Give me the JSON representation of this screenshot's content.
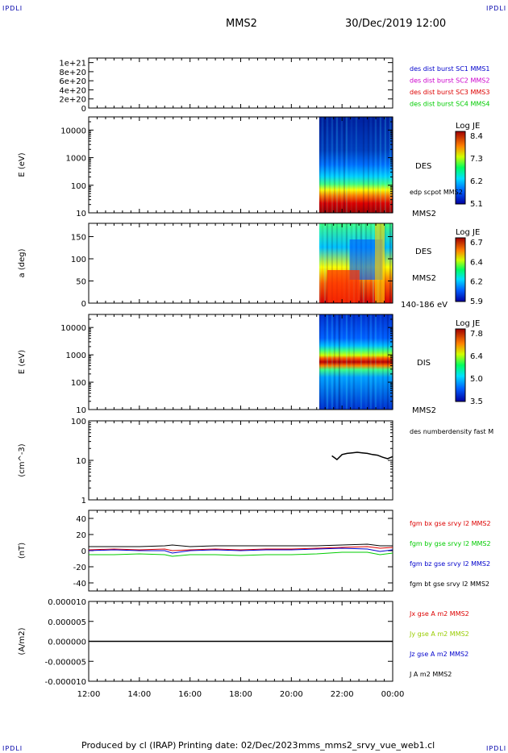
{
  "corner_mark": "IPDLI",
  "header": {
    "mission": "MMS2",
    "datetime": "30/Dec/2019 12:00"
  },
  "footer": {
    "produced_by": "Produced by cl (IRAP)",
    "printing_date": "Printing date: 02/Dec/2023",
    "filename": "mms_mms2_srvy_vue_web1.cl"
  },
  "colors": {
    "mms1": "#0000cc",
    "mms2": "#cc00cc",
    "mms3": "#dd0000",
    "mms4": "#00cc00",
    "bx": "#dd0000",
    "by": "#00cc00",
    "bz": "#0000cc",
    "bt": "#000000",
    "jy": "#99cc00"
  },
  "chart_data": [
    {
      "type": "line",
      "ylabel": "",
      "yticks": [
        "1e+21",
        "8e+20",
        "6e+20",
        "4e+20",
        "2e+20",
        "0"
      ],
      "yvalues": [
        1e+21,
        8e+20,
        6e+20,
        4e+20,
        2e+20,
        0
      ],
      "ylim": [
        0,
        1.1e+21
      ],
      "legend": [
        "des dist burst SC1 MMS1",
        "des dist burst SC2 MMS2",
        "des dist burst SC3 MMS3",
        "des dist burst SC4 MMS4"
      ]
    },
    {
      "type": "heatmap",
      "ylabel": "E (eV)",
      "yticks": [
        "10000",
        "1000",
        "100",
        "10"
      ],
      "yscale": "log",
      "ylim": [
        10,
        30000
      ],
      "colorbar": {
        "title": "Log JE",
        "ticks": [
          "8.4",
          "7.3",
          "6.2",
          "5.1"
        ]
      },
      "side_labels": [
        "DES",
        "edp scpot MMS2",
        "MMS2"
      ]
    },
    {
      "type": "heatmap",
      "ylabel": "a (deg)",
      "yticks": [
        "150",
        "100",
        "50",
        "0"
      ],
      "ylim": [
        0,
        180
      ],
      "colorbar": {
        "title": "Log JE",
        "ticks": [
          "6.7",
          "6.4",
          "6.2",
          "5.9"
        ]
      },
      "side_labels": [
        "DES",
        "MMS2",
        "140-186 eV"
      ]
    },
    {
      "type": "heatmap",
      "ylabel": "E (eV)",
      "yticks": [
        "10000",
        "1000",
        "100",
        "10"
      ],
      "yscale": "log",
      "ylim": [
        10,
        30000
      ],
      "colorbar": {
        "title": "Log JE",
        "ticks": [
          "7.8",
          "6.4",
          "5.0",
          "3.5"
        ]
      },
      "side_labels": [
        "DIS",
        "MMS2"
      ]
    },
    {
      "type": "line",
      "ylabel": "(cm^-3)",
      "yticks": [
        "100",
        "10",
        "1"
      ],
      "yscale": "log",
      "ylim": [
        1,
        100
      ],
      "legend": [
        "des numberdensity fast M"
      ],
      "series": [
        {
          "name": "des numberdensity fast M",
          "x": [
            21.6,
            21.8,
            22.0,
            22.2,
            22.4,
            22.6,
            22.8,
            23.0,
            23.2,
            23.4,
            23.6,
            23.8,
            24.0
          ],
          "values": [
            13,
            10.5,
            14,
            15,
            15.5,
            16,
            15.5,
            15,
            14,
            13.5,
            12,
            11,
            12.5
          ]
        }
      ]
    },
    {
      "type": "line",
      "ylabel": "(nT)",
      "yticks": [
        "40",
        "20",
        "0",
        "-20",
        "-40"
      ],
      "yvalues": [
        40,
        20,
        0,
        -20,
        -40
      ],
      "ylim": [
        -50,
        50
      ],
      "legend": [
        "fgm bx gse srvy l2 MMS2",
        "fgm by gse srvy l2 MMS2",
        "fgm bz gse srvy l2 MMS2",
        "fgm bt gse srvy l2 MMS2"
      ],
      "series": [
        {
          "name": "fgm bx gse srvy l2 MMS2",
          "x": [
            12,
            13,
            14,
            15,
            15.3,
            16,
            17,
            18,
            19,
            20,
            21,
            22,
            23,
            23.5,
            24
          ],
          "values": [
            1,
            2,
            1,
            2,
            0,
            1,
            2,
            1,
            2,
            2,
            3,
            4,
            5,
            3,
            4
          ]
        },
        {
          "name": "fgm by gse srvy l2 MMS2",
          "x": [
            12,
            13,
            14,
            15,
            15.3,
            16,
            17,
            18,
            19,
            20,
            21,
            22,
            23,
            23.5,
            24
          ],
          "values": [
            -5,
            -5,
            -4,
            -5,
            -7,
            -5,
            -5,
            -6,
            -5,
            -5,
            -4,
            -2,
            -2,
            -5,
            -3
          ]
        },
        {
          "name": "fgm bz gse srvy l2 MMS2",
          "x": [
            12,
            13,
            14,
            15,
            15.3,
            16,
            17,
            18,
            19,
            20,
            21,
            22,
            23,
            23.5,
            24
          ],
          "values": [
            0,
            1,
            0,
            0,
            -3,
            0,
            1,
            0,
            1,
            1,
            2,
            3,
            2,
            -1,
            1
          ]
        },
        {
          "name": "fgm bt gse srvy l2 MMS2",
          "x": [
            12,
            13,
            14,
            15,
            15.3,
            16,
            17,
            18,
            19,
            20,
            21,
            22,
            23,
            23.5,
            24
          ],
          "values": [
            5,
            5,
            5,
            6,
            7,
            5,
            6,
            6,
            6,
            6,
            6,
            7,
            8,
            6,
            6
          ]
        }
      ]
    },
    {
      "type": "line",
      "ylabel": "(A/m2)",
      "yticks": [
        "0.000010",
        "0.000005",
        "0.000000",
        "-0.000005",
        "-0.000010"
      ],
      "yvalues": [
        1e-05,
        5e-06,
        0,
        -5e-06,
        -1e-05
      ],
      "ylim": [
        -1e-05,
        1e-05
      ],
      "legend": [
        "Jx gse A m2 MMS2",
        "Jy gse A m2 MMS2",
        "Jz gse A m2 MMS2",
        "J A m2 MMS2"
      ],
      "series": [
        {
          "name": "J A m2 MMS2",
          "x": [
            12,
            24
          ],
          "values": [
            0,
            0
          ]
        }
      ]
    }
  ],
  "x_axis": {
    "ticks": [
      "12:00",
      "14:00",
      "16:00",
      "18:00",
      "20:00",
      "22:00",
      "00:00"
    ],
    "hours": [
      12,
      14,
      16,
      18,
      20,
      22,
      24
    ],
    "xlim": [
      12,
      24
    ]
  }
}
